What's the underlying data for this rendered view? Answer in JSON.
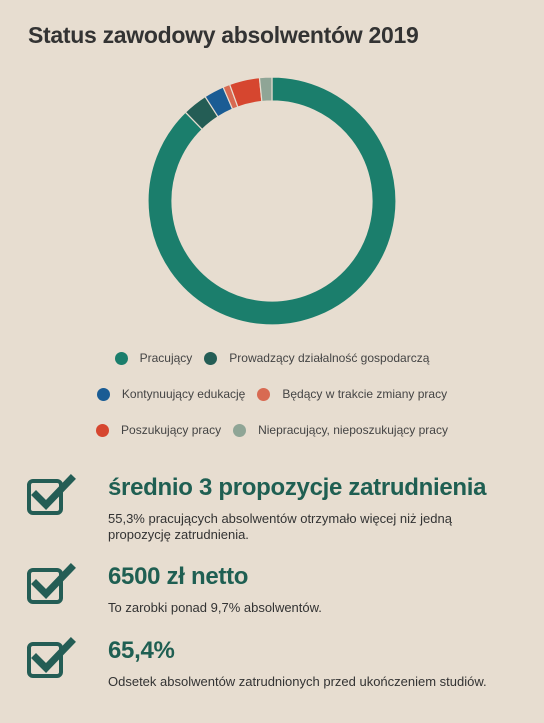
{
  "title": "Status zawodowy absolwentów 2019",
  "chart_data": {
    "type": "pie",
    "variant": "donut",
    "title": "Status zawodowy absolwentów 2019",
    "legend_position": "bottom",
    "series": [
      {
        "name": "Pracujący",
        "value": 87.0,
        "color": "#1b7e6c"
      },
      {
        "name": "Prowadzący działalność gospodarczą",
        "value": 3.2,
        "color": "#245d55"
      },
      {
        "name": "Kontynuujący edukację",
        "value": 2.6,
        "color": "#1a5c94"
      },
      {
        "name": "Będący w trakcie zmiany pracy",
        "value": 0.9,
        "color": "#d86a52"
      },
      {
        "name": "Poszukujący pracy",
        "value": 3.9,
        "color": "#d6462f"
      },
      {
        "name": "Niepracujący, nieposzukujący pracy",
        "value": 1.6,
        "color": "#8fa596"
      }
    ]
  },
  "legend": [
    [
      "Pracujący",
      "Prowadzący działalność gospodarczą"
    ],
    [
      "Kontynuujący edukację",
      "Będący w trakcie zmiany pracy"
    ],
    [
      "Poszukujący pracy",
      "Niepracujący, nieposzukujący pracy"
    ]
  ],
  "stats": [
    {
      "heading": "średnio 3 propozycje zatrudnienia",
      "text": "55,3% pracujących absolwentów otrzymało więcej niż jedną propozycję zatrudnienia."
    },
    {
      "heading": "6500 zł netto",
      "text": "To zarobki ponad 9,7% absolwentów."
    },
    {
      "heading": "65,4%",
      "text": "Odsetek absolwentów zatrudnionych przed ukończeniem studiów."
    }
  ],
  "check_icon": "checkbox-checked-icon",
  "accent_color": "#245d55"
}
